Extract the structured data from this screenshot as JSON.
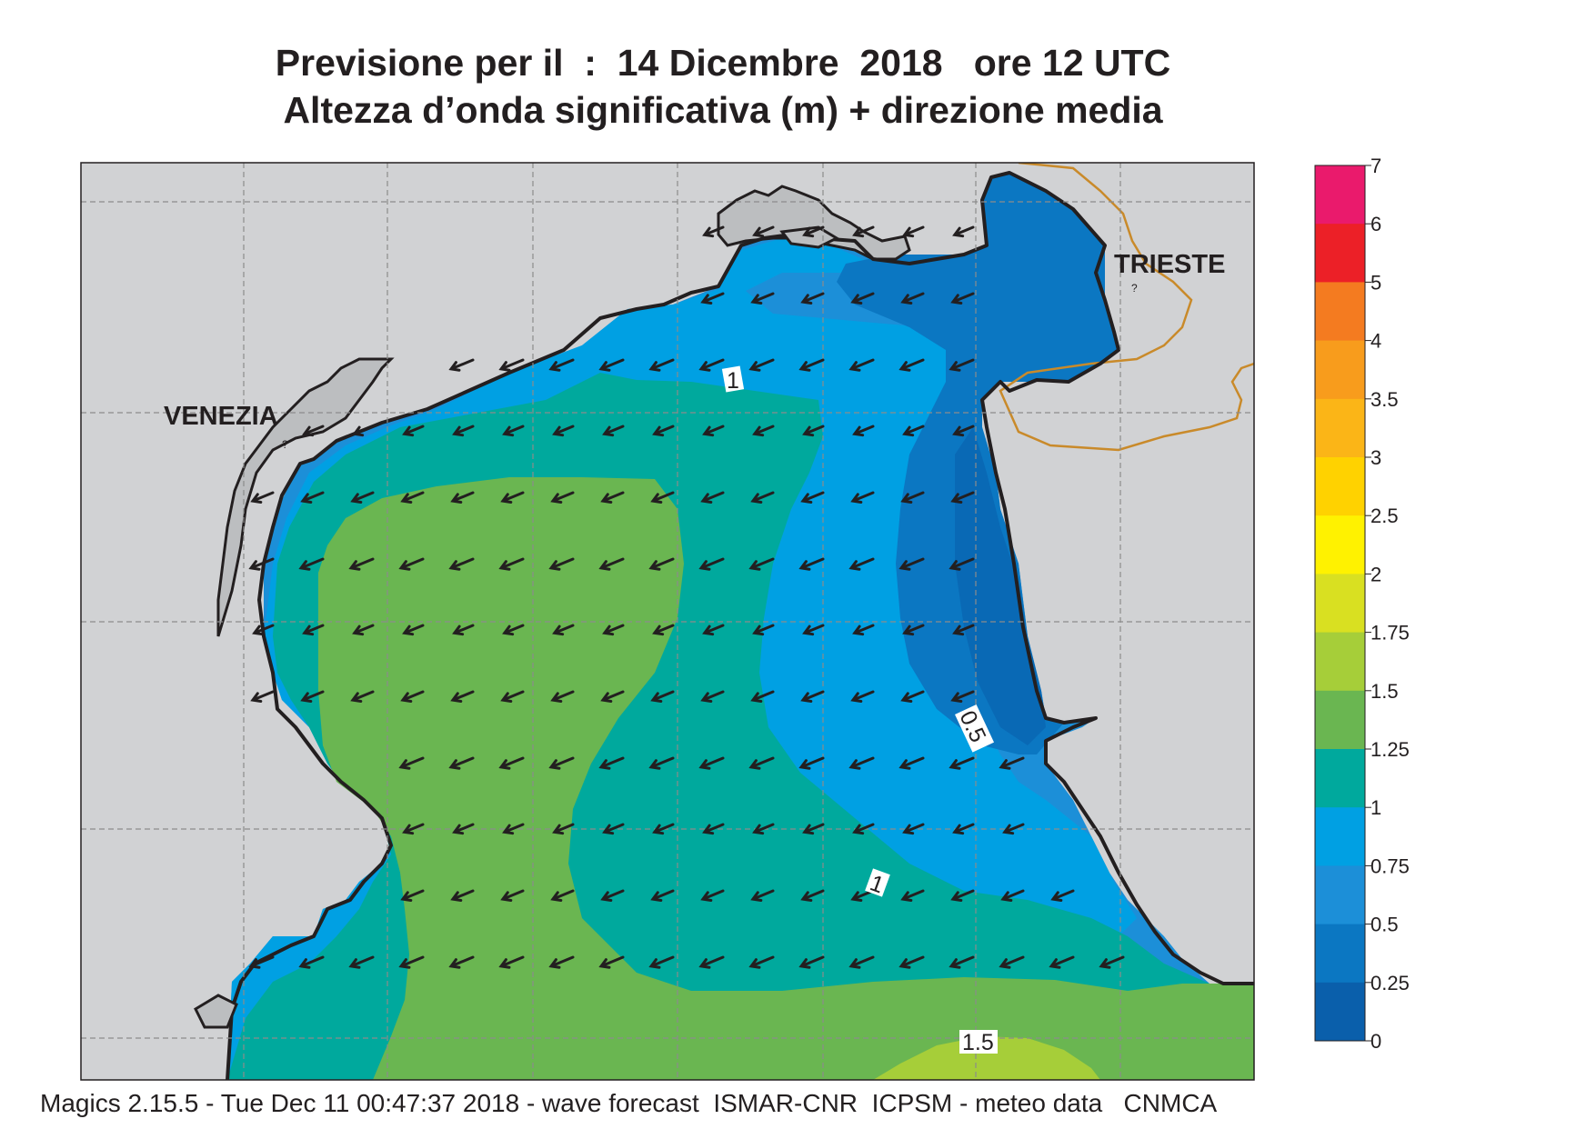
{
  "title": {
    "line1": "Previsione per il  :  14 Dicembre  2018   ore 12 UTC",
    "line2": "Altezza d’onda significativa (m) + direzione media"
  },
  "footer": "Magics 2.15.5 - Tue Dec 11 00:47:37 2018 - wave forecast  ISMAR-CNR  ICPSM - meteo data   CNMCA",
  "map": {
    "cities": [
      {
        "id": "venezia",
        "label": "VENEZIA"
      },
      {
        "id": "trieste",
        "label": "TRIESTE"
      }
    ],
    "contour_labels": [
      "1",
      "1",
      "0.5",
      "1.5"
    ],
    "land_color": "#d1d2d4",
    "coast_color": "#231f20",
    "border_color": "#c98a2a",
    "wave_direction": "toward south-west"
  },
  "legend": {
    "ticks": [
      "7",
      "6",
      "5",
      "4",
      "3.5",
      "3",
      "2.5",
      "2",
      "1.75",
      "1.5",
      "1.25",
      "1",
      "0.75",
      "0.5",
      "0.25",
      "0"
    ],
    "colors": [
      "#ea1a6c",
      "#ec2027",
      "#f47b20",
      "#f89c1c",
      "#fbb517",
      "#ffd200",
      "#fff200",
      "#d9e021",
      "#a6ce39",
      "#6ab651",
      "#00a99d",
      "#00a0e3",
      "#1c8fd8",
      "#0b77c2",
      "#0a5fab"
    ]
  }
}
